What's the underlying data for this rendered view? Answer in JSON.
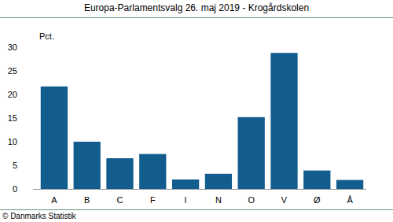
{
  "chart_data": {
    "type": "bar",
    "title": "Europa-Parlamentsvalg 26. maj 2019 - Krogårdskolen",
    "y_label": "Pct.",
    "source": "© Danmarks Statistik",
    "categories": [
      "A",
      "B",
      "C",
      "F",
      "I",
      "N",
      "O",
      "V",
      "Ø",
      "Å"
    ],
    "values": [
      21.7,
      10.0,
      6.5,
      7.4,
      2.0,
      3.2,
      15.2,
      28.8,
      3.9,
      1.9
    ],
    "color": "#125d8e",
    "ylim": [
      0,
      30
    ],
    "yticks": [
      0,
      5,
      10,
      15,
      20,
      25,
      30
    ],
    "grid": false
  }
}
